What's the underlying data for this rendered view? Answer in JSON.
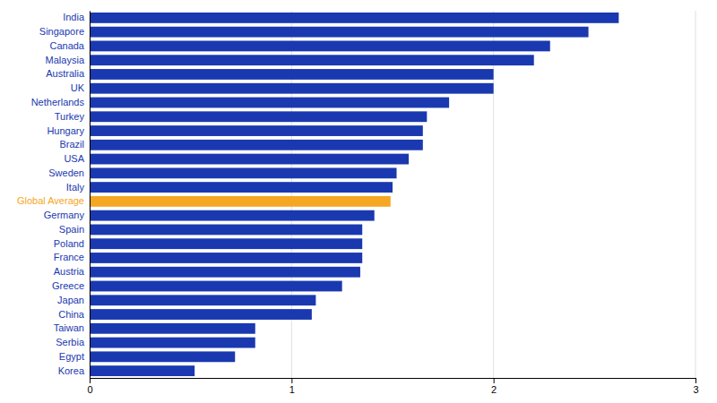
{
  "chart_data": {
    "type": "bar",
    "orientation": "horizontal",
    "categories": [
      "India",
      "Singapore",
      "Canada",
      "Malaysia",
      "Australia",
      "UK",
      "Netherlands",
      "Turkey",
      "Hungary",
      "Brazil",
      "USA",
      "Sweden",
      "Italy",
      "Global Average",
      "Germany",
      "Spain",
      "Poland",
      "France",
      "Austria",
      "Greece",
      "Japan",
      "China",
      "Taiwan",
      "Serbia",
      "Egypt",
      "Korea"
    ],
    "values": [
      2.62,
      2.47,
      2.28,
      2.2,
      2.0,
      2.0,
      1.78,
      1.67,
      1.65,
      1.65,
      1.58,
      1.52,
      1.5,
      1.49,
      1.41,
      1.35,
      1.35,
      1.35,
      1.34,
      1.25,
      1.12,
      1.1,
      0.82,
      0.82,
      0.72,
      0.52
    ],
    "colors": [
      "#1a39b0",
      "#1a39b0",
      "#1a39b0",
      "#1a39b0",
      "#1a39b0",
      "#1a39b0",
      "#1a39b0",
      "#1a39b0",
      "#1a39b0",
      "#1a39b0",
      "#1a39b0",
      "#1a39b0",
      "#1a39b0",
      "#f5a623",
      "#1a39b0",
      "#1a39b0",
      "#1a39b0",
      "#1a39b0",
      "#1a39b0",
      "#1a39b0",
      "#1a39b0",
      "#1a39b0",
      "#1a39b0",
      "#1a39b0",
      "#1a39b0",
      "#1a39b0"
    ],
    "xlim": [
      0,
      3
    ],
    "xticks": [
      0,
      1,
      2,
      3
    ],
    "grid": true
  }
}
